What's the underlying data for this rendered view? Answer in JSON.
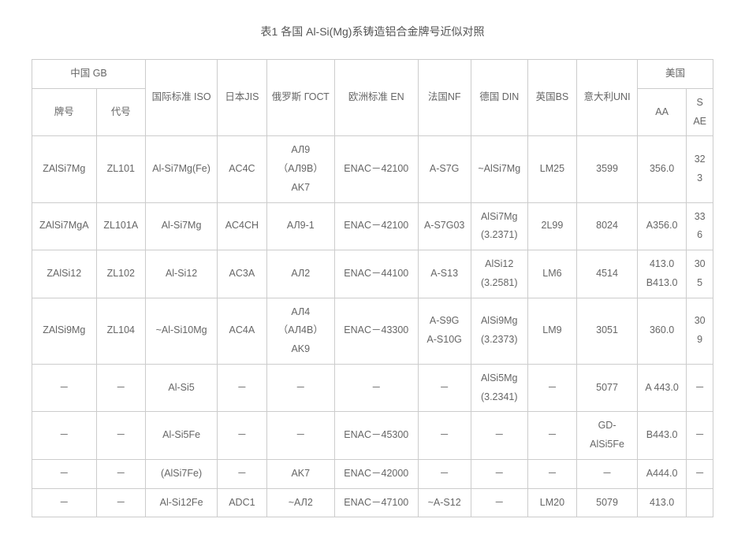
{
  "title": "表1  各国 Al-Si(Mg)系铸造铝合金牌号近似对照",
  "columns": {
    "china_gb": "中国 GB",
    "china_gb_sub1": "牌号",
    "china_gb_sub2": "代号",
    "iso": "国际标准 ISO",
    "jis": "日本JIS",
    "gost": "俄罗斯 ГОСТ",
    "en": "欧洲标准 EN",
    "nf": "法国NF",
    "din": "德国 DIN",
    "bs": "英国BS",
    "uni": "意大利UNI",
    "usa": "美国",
    "usa_sub1": "AA",
    "usa_sub2": "S\nAE"
  },
  "rows": [
    {
      "c0": "ZAlSi7Mg",
      "c1": "ZL101",
      "c2": "Al-Si7Mg(Fe)",
      "c3": "AC4C",
      "c4": "АЛ9\n（АЛ9В）\nAK7",
      "c5": "ENAC－42100",
      "c6": "A-S7G",
      "c7": "~AlSi7Mg",
      "c8": "LM25",
      "c9": "3599",
      "c10": "356.0",
      "c11": "32\n3"
    },
    {
      "c0": "ZAlSi7MgA",
      "c1": "ZL101A",
      "c2": "Al-Si7Mg",
      "c3": "AC4CH",
      "c4": "АЛ9-1",
      "c5": "ENAC－42100",
      "c6": "A-S7G03",
      "c7": "AlSi7Mg\n(3.2371)",
      "c8": "2L99",
      "c9": "8024",
      "c10": "A356.0",
      "c11": "33\n6"
    },
    {
      "c0": "ZAlSi12",
      "c1": "ZL102",
      "c2": "Al-Si12",
      "c3": "AC3A",
      "c4": "АЛ2",
      "c5": "ENAC－44100",
      "c6": "A-S13",
      "c7": "AlSi12\n(3.2581)",
      "c8": "LM6",
      "c9": "4514",
      "c10": "413.0\nB413.0",
      "c11": "30\n5"
    },
    {
      "c0": "ZAlSi9Mg",
      "c1": "ZL104",
      "c2": "~Al-Si10Mg",
      "c3": "AC4A",
      "c4": "АЛ4\n（АЛ4В）\nAK9",
      "c5": "ENAC－43300",
      "c6": "A-S9G\nA-S10G",
      "c7": "AlSi9Mg\n(3.2373)",
      "c8": "LM9",
      "c9": "3051",
      "c10": "360.0",
      "c11": "30\n9"
    },
    {
      "c0": "－",
      "c1": "－",
      "c2": "Al-Si5",
      "c3": "－",
      "c4": "－",
      "c5": "－",
      "c6": "－",
      "c7": "AlSi5Mg\n(3.2341)",
      "c8": "－",
      "c9": "5077",
      "c10": "A 443.0",
      "c11": "－"
    },
    {
      "c0": "－",
      "c1": "－",
      "c2": "Al-Si5Fe",
      "c3": "－",
      "c4": "－",
      "c5": "ENAC－45300",
      "c6": "－",
      "c7": "－",
      "c8": "－",
      "c9": "GD-\nAlSi5Fe",
      "c10": "B443.0",
      "c11": "－"
    },
    {
      "c0": "－",
      "c1": "－",
      "c2": "(AlSi7Fe)",
      "c3": "－",
      "c4": "AK7",
      "c5": "ENAC－42000",
      "c6": "－",
      "c7": "－",
      "c8": "－",
      "c9": "－",
      "c10": "A444.0",
      "c11": "－"
    },
    {
      "c0": "－",
      "c1": "－",
      "c2": "Al-Si12Fe",
      "c3": "ADC1",
      "c4": "~АЛ2",
      "c5": "ENAC－47100",
      "c6": "~A-S12",
      "c7": "－",
      "c8": "LM20",
      "c9": "5079",
      "c10": "413.0",
      "c11": ""
    }
  ]
}
